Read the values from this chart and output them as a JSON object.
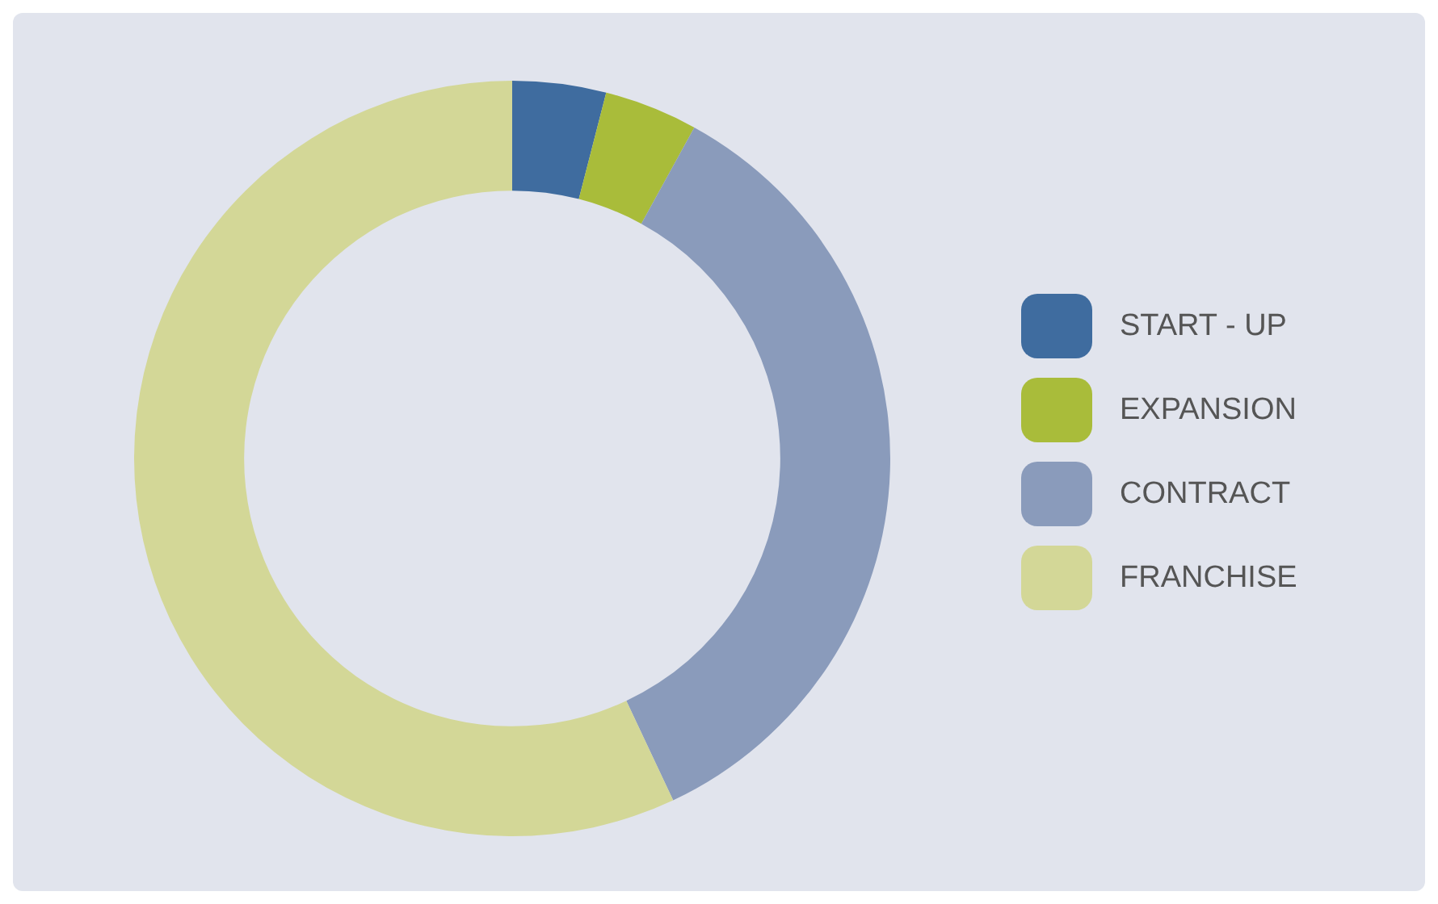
{
  "chart_data": {
    "type": "donut",
    "categories": [
      "START - UP",
      "EXPANSION",
      "CONTRACT",
      "FRANCHISE"
    ],
    "values": [
      4,
      4,
      35,
      57
    ],
    "colors": [
      "#3f6c9f",
      "#a9bc3a",
      "#8a9bbb",
      "#d3d797"
    ],
    "legend": "right"
  }
}
